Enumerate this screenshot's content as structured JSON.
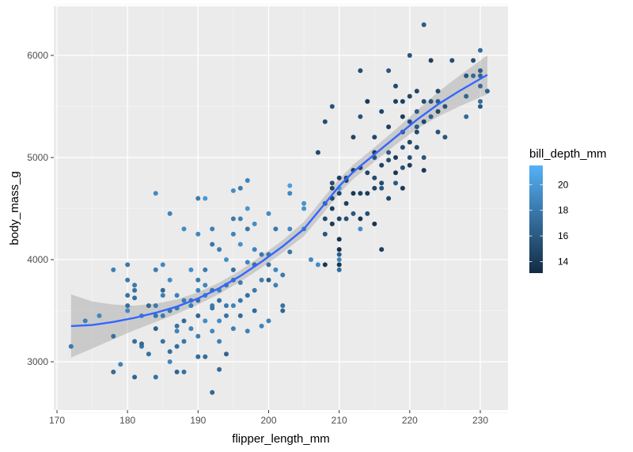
{
  "chart_data": {
    "type": "scatter",
    "title": "",
    "xlabel": "flipper_length_mm",
    "ylabel": "body_mass_g",
    "xlim": [
      169,
      233
    ],
    "ylim": [
      2520,
      6480
    ],
    "x_ticks": [
      170,
      180,
      190,
      200,
      210,
      220,
      230
    ],
    "x_tick_labels": [
      "170",
      "180",
      "190",
      "200",
      "210",
      "220",
      "230"
    ],
    "y_ticks": [
      3000,
      4000,
      5000,
      6000
    ],
    "y_tick_labels": [
      "3000",
      "4000",
      "5000",
      "6000"
    ],
    "grid": true,
    "legend": {
      "title": "bill_depth_mm",
      "position": "right",
      "type": "colorbar",
      "ticks": [
        20,
        18,
        16,
        14
      ],
      "tick_labels": [
        "20",
        "18",
        "16",
        "14"
      ],
      "range": [
        13.1,
        21.5
      ],
      "color_low": "#132B43",
      "color_high": "#56B1F7"
    },
    "smooth": {
      "method": "loess",
      "color": "#3366FF",
      "ribbon_color": "#999999",
      "curve": [
        [
          172,
          3350
        ],
        [
          175,
          3360
        ],
        [
          178,
          3390
        ],
        [
          181,
          3430
        ],
        [
          184,
          3480
        ],
        [
          187,
          3540
        ],
        [
          190,
          3620
        ],
        [
          193,
          3720
        ],
        [
          196,
          3840
        ],
        [
          199,
          3980
        ],
        [
          202,
          4130
        ],
        [
          205,
          4300
        ],
        [
          208,
          4550
        ],
        [
          210,
          4720
        ],
        [
          212,
          4860
        ],
        [
          215,
          5030
        ],
        [
          218,
          5200
        ],
        [
          221,
          5370
        ],
        [
          224,
          5520
        ],
        [
          227,
          5650
        ],
        [
          231,
          5810
        ]
      ],
      "ribbon_halfwidth": [
        310,
        230,
        170,
        120,
        90,
        70,
        60,
        55,
        55,
        60,
        60,
        70,
        75,
        70,
        70,
        70,
        75,
        90,
        120,
        150,
        190
      ]
    },
    "points": [
      [
        172,
        3150,
        18.0
      ],
      [
        174,
        3400,
        18.5
      ],
      [
        176,
        3450,
        18.9
      ],
      [
        178,
        3250,
        17.5
      ],
      [
        178,
        2900,
        17.1
      ],
      [
        178,
        3900,
        18.4
      ],
      [
        179,
        2975,
        18.6
      ],
      [
        180,
        3950,
        17.9
      ],
      [
        180,
        3800,
        18.1
      ],
      [
        180,
        3550,
        17.4
      ],
      [
        180,
        3500,
        18.9
      ],
      [
        180,
        3650,
        17.7
      ],
      [
        181,
        3625,
        17.2
      ],
      [
        181,
        3700,
        17.6
      ],
      [
        181,
        3750,
        18.0
      ],
      [
        181,
        3200,
        17.3
      ],
      [
        181,
        2850,
        16.6
      ],
      [
        182,
        3150,
        17.8
      ],
      [
        182,
        3175,
        16.9
      ],
      [
        182,
        3450,
        18.7
      ],
      [
        183,
        3075,
        17.4
      ],
      [
        183,
        3550,
        16.9
      ],
      [
        184,
        4650,
        19.0
      ],
      [
        184,
        3900,
        18.3
      ],
      [
        184,
        3325,
        16.4
      ],
      [
        184,
        2850,
        17.5
      ],
      [
        184,
        3550,
        18.1
      ],
      [
        184,
        3450,
        17.8
      ],
      [
        185,
        3950,
        18.9
      ],
      [
        185,
        3200,
        17.6
      ],
      [
        185,
        3700,
        17.0
      ],
      [
        185,
        3650,
        18.5
      ],
      [
        185,
        3450,
        18.2
      ],
      [
        186,
        3800,
        19.2
      ],
      [
        186,
        4450,
        18.6
      ],
      [
        186,
        3100,
        17.3
      ],
      [
        186,
        3500,
        17.9
      ],
      [
        186,
        3000,
        18.8
      ],
      [
        187,
        3350,
        17.6
      ],
      [
        187,
        3650,
        18.4
      ],
      [
        187,
        2900,
        16.7
      ],
      [
        187,
        3525,
        18.0
      ],
      [
        187,
        3150,
        17.3
      ],
      [
        187,
        3300,
        18.7
      ],
      [
        188,
        2900,
        17.4
      ],
      [
        188,
        3600,
        18.2
      ],
      [
        188,
        4300,
        19.1
      ],
      [
        188,
        3200,
        17.8
      ],
      [
        188,
        3400,
        17.0
      ],
      [
        189,
        3550,
        18.3
      ],
      [
        189,
        3600,
        17.6
      ],
      [
        189,
        3900,
        19.3
      ],
      [
        189,
        3325,
        18.5
      ],
      [
        190,
        4250,
        18.9
      ],
      [
        190,
        3600,
        17.6
      ],
      [
        190,
        3700,
        18.8
      ],
      [
        190,
        3050,
        17.1
      ],
      [
        190,
        3450,
        16.9
      ],
      [
        190,
        3250,
        18.4
      ],
      [
        190,
        3800,
        18.1
      ],
      [
        190,
        4600,
        18.3
      ],
      [
        191,
        4600,
        20.0
      ],
      [
        191,
        3650,
        18.6
      ],
      [
        191,
        3750,
        18.7
      ],
      [
        191,
        3400,
        19.2
      ],
      [
        191,
        3050,
        17.2
      ],
      [
        191,
        3900,
        18.0
      ],
      [
        192,
        4150,
        17.8
      ],
      [
        192,
        3550,
        18.1
      ],
      [
        192,
        3700,
        17.5
      ],
      [
        192,
        2700,
        16.8
      ],
      [
        192,
        3300,
        18.9
      ],
      [
        192,
        3525,
        17.7
      ],
      [
        192,
        4300,
        18.5
      ],
      [
        193,
        4100,
        18.3
      ],
      [
        193,
        3700,
        18.8
      ],
      [
        193,
        3600,
        17.4
      ],
      [
        193,
        3400,
        19.1
      ],
      [
        193,
        2925,
        17.0
      ],
      [
        193,
        3200,
        18.4
      ],
      [
        194,
        3550,
        18.0
      ],
      [
        194,
        4000,
        19.4
      ],
      [
        194,
        3750,
        17.9
      ],
      [
        194,
        3450,
        17.6
      ],
      [
        194,
        3075,
        16.6
      ],
      [
        195,
        4675,
        19.2
      ],
      [
        195,
        4250,
        18.6
      ],
      [
        195,
        4400,
        18.1
      ],
      [
        195,
        3800,
        17.9
      ],
      [
        195,
        3550,
        18.7
      ],
      [
        195,
        3325,
        18.3
      ],
      [
        195,
        3900,
        17.4
      ],
      [
        196,
        4700,
        18.3
      ],
      [
        196,
        4150,
        19.5
      ],
      [
        196,
        4400,
        18.5
      ],
      [
        196,
        3775,
        18.2
      ],
      [
        196,
        3600,
        17.8
      ],
      [
        196,
        3450,
        17.1
      ],
      [
        197,
        4775,
        18.6
      ],
      [
        197,
        4300,
        17.9
      ],
      [
        197,
        4500,
        19.8
      ],
      [
        197,
        3975,
        18.8
      ],
      [
        197,
        3300,
        18.5
      ],
      [
        197,
        3650,
        17.4
      ],
      [
        198,
        4350,
        19.3
      ],
      [
        198,
        3950,
        17.4
      ],
      [
        198,
        3700,
        18.0
      ],
      [
        198,
        4100,
        18.7
      ],
      [
        198,
        3500,
        17.1
      ],
      [
        199,
        3800,
        18.3
      ],
      [
        199,
        4050,
        17.9
      ],
      [
        199,
        3350,
        18.6
      ],
      [
        200,
        4450,
        19.2
      ],
      [
        200,
        4050,
        18.0
      ],
      [
        200,
        3400,
        18.6
      ],
      [
        200,
        3950,
        17.5
      ],
      [
        200,
        3800,
        16.6
      ],
      [
        201,
        4300,
        17.9
      ],
      [
        201,
        3900,
        18.8
      ],
      [
        201,
        3750,
        18.5
      ],
      [
        202,
        3850,
        18.1
      ],
      [
        202,
        3550,
        17.6
      ],
      [
        202,
        3500,
        16.9
      ],
      [
        203,
        4725,
        20.3
      ],
      [
        203,
        4300,
        19.0
      ],
      [
        203,
        4075,
        17.8
      ],
      [
        203,
        4650,
        18.9
      ],
      [
        205,
        4550,
        19.5
      ],
      [
        205,
        4300,
        18.8
      ],
      [
        205,
        4500,
        19.6
      ],
      [
        206,
        4000,
        19.0
      ],
      [
        207,
        5050,
        15.0
      ],
      [
        207,
        3950,
        19.2
      ],
      [
        208,
        4550,
        16.4
      ],
      [
        208,
        4400,
        15.0
      ],
      [
        208,
        5350,
        15.3
      ],
      [
        208,
        3950,
        13.9
      ],
      [
        208,
        4250,
        15.8
      ],
      [
        209,
        5500,
        15.7
      ],
      [
        209,
        4750,
        15.2
      ],
      [
        209,
        4700,
        14.7
      ],
      [
        209,
        4500,
        14.3
      ],
      [
        209,
        4600,
        15.1
      ],
      [
        209,
        4350,
        14.0
      ],
      [
        210,
        4800,
        14.4
      ],
      [
        210,
        4650,
        14.8
      ],
      [
        210,
        4700,
        20.0
      ],
      [
        210,
        4400,
        14.6
      ],
      [
        210,
        4200,
        13.8
      ],
      [
        210,
        4100,
        13.5
      ],
      [
        210,
        3950,
        13.6
      ],
      [
        210,
        4050,
        16.3
      ],
      [
        210,
        3900,
        17.2
      ],
      [
        210,
        4000,
        18.8
      ],
      [
        211,
        4800,
        15.1
      ],
      [
        211,
        4550,
        14.3
      ],
      [
        211,
        4400,
        15.4
      ],
      [
        211,
        4775,
        14.5
      ],
      [
        212,
        5200,
        14.8
      ],
      [
        212,
        4875,
        14.1
      ],
      [
        212,
        4650,
        13.9
      ],
      [
        212,
        4450,
        15.9
      ],
      [
        213,
        5850,
        15.2
      ],
      [
        213,
        5400,
        15.6
      ],
      [
        213,
        4900,
        14.6
      ],
      [
        213,
        4650,
        14.5
      ],
      [
        213,
        4400,
        13.8
      ],
      [
        213,
        4300,
        19.2
      ],
      [
        214,
        4850,
        15.0
      ],
      [
        214,
        4650,
        14.2
      ],
      [
        214,
        4450,
        15.5
      ],
      [
        214,
        5550,
        14.0
      ],
      [
        215,
        5000,
        15.7
      ],
      [
        215,
        5050,
        14.2
      ],
      [
        215,
        4800,
        15.1
      ],
      [
        215,
        4700,
        14.6
      ],
      [
        215,
        4350,
        13.7
      ],
      [
        215,
        5200,
        14.9
      ],
      [
        216,
        4925,
        14.6
      ],
      [
        216,
        4750,
        15.1
      ],
      [
        216,
        4700,
        16.0
      ],
      [
        216,
        4100,
        14.3
      ],
      [
        216,
        5450,
        14.7
      ],
      [
        217,
        5850,
        15.8
      ],
      [
        217,
        5300,
        14.5
      ],
      [
        217,
        5050,
        16.1
      ],
      [
        217,
        4975,
        15.2
      ],
      [
        217,
        4600,
        14.9
      ],
      [
        218,
        5700,
        15.0
      ],
      [
        218,
        5000,
        14.1
      ],
      [
        218,
        4750,
        16.0
      ],
      [
        218,
        5550,
        14.4
      ],
      [
        218,
        4850,
        13.9
      ],
      [
        219,
        5250,
        15.9
      ],
      [
        219,
        4900,
        15.4
      ],
      [
        219,
        5100,
        15.3
      ],
      [
        219,
        4700,
        14.0
      ],
      [
        219,
        5400,
        14.2
      ],
      [
        219,
        5550,
        14.5
      ],
      [
        220,
        6000,
        15.7
      ],
      [
        220,
        5600,
        14.9
      ],
      [
        220,
        5350,
        15.4
      ],
      [
        220,
        5150,
        14.8
      ],
      [
        220,
        5000,
        15.5
      ],
      [
        220,
        4925,
        14.3
      ],
      [
        221,
        5650,
        15.0
      ],
      [
        221,
        5250,
        15.0
      ],
      [
        221,
        5450,
        16.3
      ],
      [
        221,
        5100,
        15.2
      ],
      [
        221,
        5300,
        15.9
      ],
      [
        222,
        6300,
        16.1
      ],
      [
        222,
        5550,
        15.3
      ],
      [
        222,
        5350,
        14.8
      ],
      [
        222,
        5000,
        15.8
      ],
      [
        222,
        4875,
        13.9
      ],
      [
        223,
        5950,
        14.4
      ],
      [
        223,
        5550,
        15.8
      ],
      [
        223,
        5400,
        16.4
      ],
      [
        224,
        5650,
        15.1
      ],
      [
        224,
        5250,
        15.7
      ],
      [
        224,
        5450,
        14.9
      ],
      [
        224,
        5550,
        16.2
      ],
      [
        225,
        5500,
        15.6
      ],
      [
        225,
        5200,
        15.8
      ],
      [
        226,
        5950,
        15.2
      ],
      [
        228,
        5800,
        15.9
      ],
      [
        228,
        5600,
        16.8
      ],
      [
        228,
        5400,
        17.0
      ],
      [
        229,
        5950,
        15.4
      ],
      [
        229,
        5800,
        17.0
      ],
      [
        230,
        6050,
        17.2
      ],
      [
        230,
        5850,
        16.2
      ],
      [
        230,
        5800,
        16.8
      ],
      [
        230,
        5700,
        17.1
      ],
      [
        230,
        5550,
        17.3
      ],
      [
        230,
        5500,
        16.1
      ],
      [
        231,
        5650,
        16.4
      ]
    ]
  }
}
